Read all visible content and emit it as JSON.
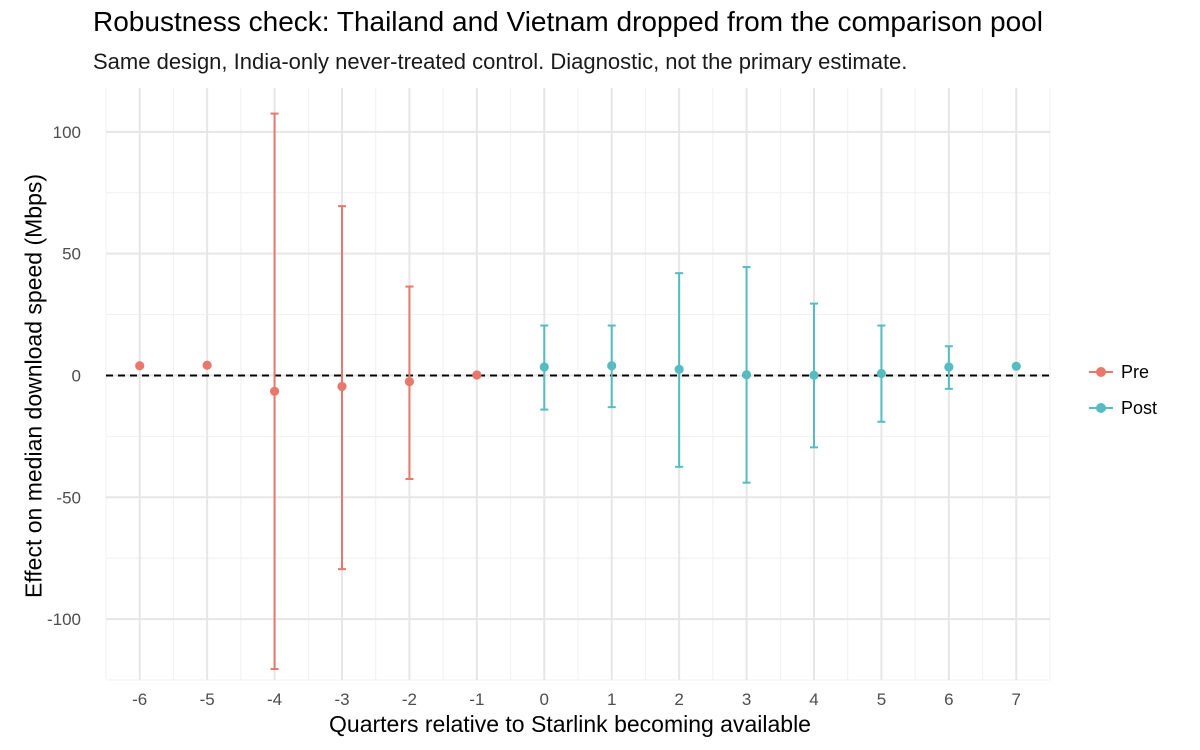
{
  "chart_data": {
    "type": "scatter",
    "title": "Robustness check: Thailand and Vietnam dropped from the comparison pool",
    "subtitle": "Same design, India-only never-treated control. Diagnostic, not the primary estimate.",
    "xlabel": "Quarters relative to Starlink becoming available",
    "ylabel": "Effect on median download speed (Mbps)",
    "xlim": [
      -6.5,
      7.5
    ],
    "ylim": [
      -125,
      118
    ],
    "xticks": [
      -6,
      -5,
      -4,
      -3,
      -2,
      -1,
      0,
      1,
      2,
      3,
      4,
      5,
      6,
      7
    ],
    "yticks": [
      100,
      50,
      0,
      -50,
      -100
    ],
    "reference_line": 0,
    "grid": true,
    "legend_position": "right",
    "series": [
      {
        "name": "Pre",
        "color": "#E7786B",
        "points": [
          {
            "x": -6,
            "y": 4.0
          },
          {
            "x": -5,
            "y": 4.2
          },
          {
            "x": -4,
            "y": -6.5,
            "low": -120.5,
            "high": 107.5
          },
          {
            "x": -3,
            "y": -4.5,
            "low": -79.5,
            "high": 69.5
          },
          {
            "x": -2,
            "y": -2.5,
            "low": -42.5,
            "high": 36.5
          },
          {
            "x": -1,
            "y": 0.2
          }
        ]
      },
      {
        "name": "Post",
        "color": "#56BCC2",
        "points": [
          {
            "x": 0,
            "y": 3.5,
            "low": -14,
            "high": 20.5
          },
          {
            "x": 1,
            "y": 4.0,
            "low": -13,
            "high": 20.5
          },
          {
            "x": 2,
            "y": 2.5,
            "low": -37.5,
            "high": 42
          },
          {
            "x": 3,
            "y": 0.3,
            "low": -44,
            "high": 44.5
          },
          {
            "x": 4,
            "y": 0.1,
            "low": -29.5,
            "high": 29.5
          },
          {
            "x": 5,
            "y": 0.8,
            "low": -19,
            "high": 20.5
          },
          {
            "x": 6,
            "y": 3.5,
            "low": -5.5,
            "high": 12
          },
          {
            "x": 7,
            "y": 3.8
          }
        ]
      }
    ]
  }
}
